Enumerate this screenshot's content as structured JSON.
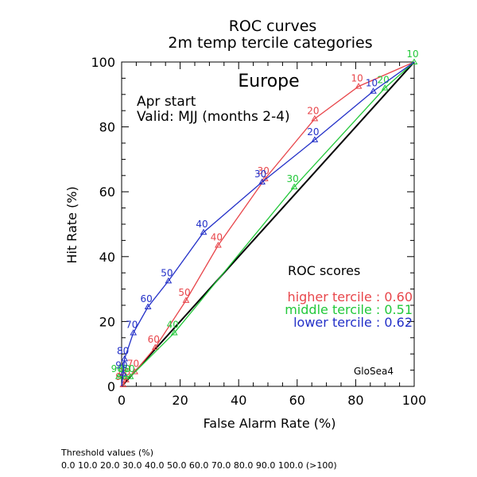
{
  "header": {
    "title_line1": "ROC curves",
    "title_line2": "2m temp tercile categories",
    "region": "Europe",
    "start": "Apr start",
    "valid": "Valid: MJJ (months 2-4)"
  },
  "scores": {
    "heading": "ROC scores",
    "lines": [
      {
        "text": "higher tercile : 0.60",
        "color": "#e8464b"
      },
      {
        "text": "middle tercile : 0.51",
        "color": "#22c83a"
      },
      {
        "text": "lower tercile : 0.62",
        "color": "#2330c8"
      }
    ]
  },
  "model_label": "GloSea4",
  "footer": {
    "threshold_title": "Threshold values (%)",
    "threshold_values": "0.0 10.0 20.0 30.0 40.0 50.0 60.0 70.0 80.0 90.0 100.0 (>100)"
  },
  "chart_data": {
    "type": "line",
    "xlabel": "False Alarm Rate (%)",
    "ylabel": "Hit Rate (%)",
    "xlim": [
      0,
      100
    ],
    "ylim": [
      0,
      100
    ],
    "xticks": [
      0,
      20,
      40,
      60,
      80,
      100
    ],
    "yticks": [
      0,
      20,
      40,
      60,
      80,
      100
    ],
    "diagonal": true,
    "series": [
      {
        "name": "higher tercile",
        "color": "#e8464b",
        "points": [
          {
            "x": 100,
            "y": 100,
            "label": ""
          },
          {
            "x": 81,
            "y": 92.5,
            "label": "10"
          },
          {
            "x": 66,
            "y": 82.5,
            "label": "20"
          },
          {
            "x": 49,
            "y": 64,
            "label": "30"
          },
          {
            "x": 33,
            "y": 43.5,
            "label": "40"
          },
          {
            "x": 22,
            "y": 26.5,
            "label": "50"
          },
          {
            "x": 11.5,
            "y": 12,
            "label": "60"
          },
          {
            "x": 4.5,
            "y": 4.5,
            "label": "70"
          },
          {
            "x": 1.5,
            "y": 2,
            "label": "80"
          },
          {
            "x": 0.5,
            "y": 0.5,
            "label": "90"
          },
          {
            "x": 0,
            "y": 0,
            "label": ""
          }
        ]
      },
      {
        "name": "middle tercile",
        "color": "#22c83a",
        "points": [
          {
            "x": 100,
            "y": 100,
            "label": "10"
          },
          {
            "x": 90,
            "y": 92,
            "label": "20"
          },
          {
            "x": 59,
            "y": 61.5,
            "label": "30"
          },
          {
            "x": 18,
            "y": 16.5,
            "label": "40"
          },
          {
            "x": 3,
            "y": 3,
            "label": "50"
          },
          {
            "x": 1.5,
            "y": 3,
            "label": "60"
          },
          {
            "x": -1,
            "y": 3,
            "label": "90"
          },
          {
            "x": -1.5,
            "y": 3.5,
            "label": ""
          }
        ]
      },
      {
        "name": "lower tercile",
        "color": "#2330c8",
        "points": [
          {
            "x": 100,
            "y": 100,
            "label": ""
          },
          {
            "x": 86,
            "y": 91,
            "label": "10"
          },
          {
            "x": 66,
            "y": 76,
            "label": "20"
          },
          {
            "x": 48,
            "y": 63,
            "label": "30"
          },
          {
            "x": 28,
            "y": 47.5,
            "label": "40"
          },
          {
            "x": 16,
            "y": 32.5,
            "label": "50"
          },
          {
            "x": 9,
            "y": 24.5,
            "label": "60"
          },
          {
            "x": 4,
            "y": 16.5,
            "label": "70"
          },
          {
            "x": 1,
            "y": 8.5,
            "label": "80"
          },
          {
            "x": 0.5,
            "y": 4,
            "label": "90"
          },
          {
            "x": 0,
            "y": 0,
            "label": ""
          }
        ]
      }
    ]
  }
}
